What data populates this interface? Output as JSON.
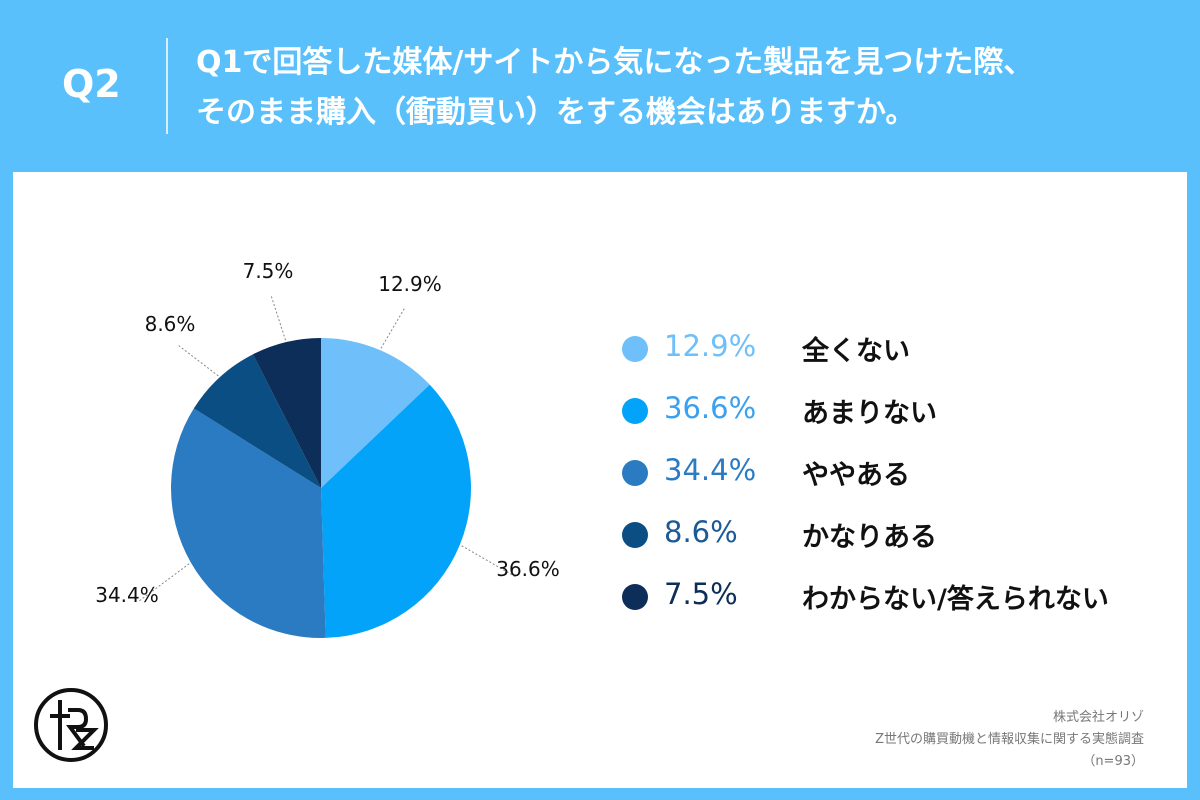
{
  "header": {
    "q_label": "Q2",
    "question_line1": "Q1で回答した媒体/サイトから気になった製品を見つけた際、",
    "question_line2": "そのまま購入（衝動買い）をする機会はありますか。"
  },
  "chart_data": {
    "type": "pie",
    "categories": [
      "全くない",
      "あまりない",
      "ややある",
      "かなりある",
      "わからない/答えられない"
    ],
    "values": [
      12.9,
      36.6,
      34.4,
      8.6,
      7.5
    ],
    "value_labels": [
      "12.9%",
      "36.6%",
      "34.4%",
      "8.6%",
      "7.5%"
    ],
    "colors": [
      "#6ebffa",
      "#03a3f9",
      "#2b7bc2",
      "#0a4e84",
      "#0d2e59"
    ],
    "legend_text_colors": [
      "#6ebffa",
      "#3aa0f0",
      "#2b7bc2",
      "#1a5a96",
      "#0d2e59"
    ],
    "legend_placement": "right",
    "start": "12 o'clock, clockwise"
  },
  "footer": {
    "company": "株式会社オリゾ",
    "survey": "Z世代の購買動機と情報収集に関する実態調査",
    "sample": "（n=93）"
  },
  "logo": {
    "icon": "orizo-monogram-logo"
  }
}
